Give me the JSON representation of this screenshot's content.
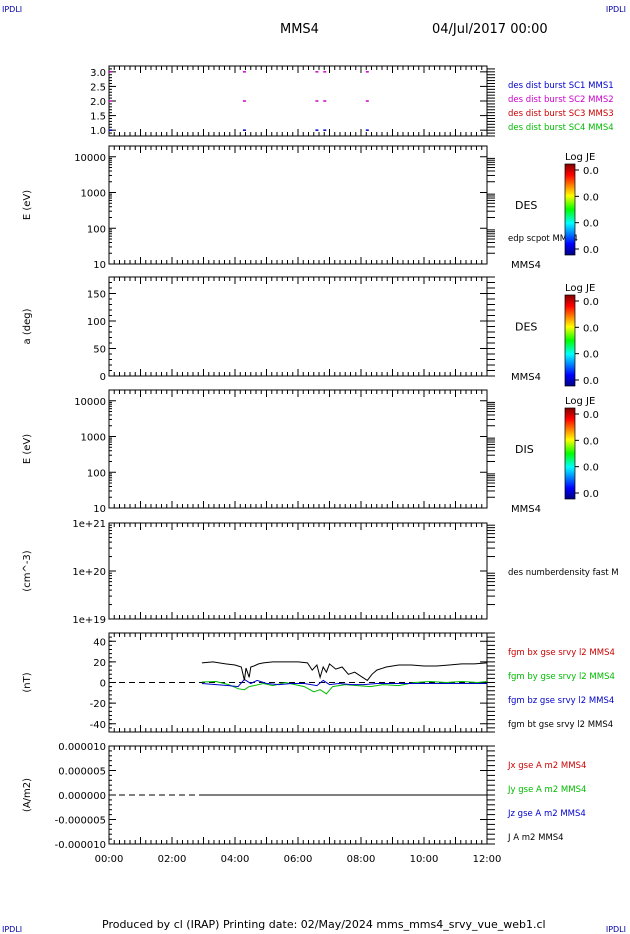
{
  "header": {
    "corner_left": "IPDLI",
    "corner_right": "IPDLI",
    "title": "MMS4",
    "date": "04/Jul/2017 00:00"
  },
  "footer": {
    "text": "Produced by cl (IRAP)   Printing date: 02/May/2024   mms_mms4_srvy_vue_web1.cl",
    "corner_left": "IPDLI",
    "corner_right": "IPDLI"
  },
  "time_axis": {
    "ticks": [
      "00:00",
      "02:00",
      "04:00",
      "06:00",
      "08:00",
      "10:00",
      "12:00"
    ],
    "range_hours": [
      0,
      12
    ]
  },
  "colors": {
    "mms1": "#0000cc",
    "mms2": "#cc00cc",
    "mms3": "#cc0000",
    "mms4": "#00bb00",
    "black": "#000000"
  },
  "chart_data": [
    {
      "type": "scatter",
      "panel": "burst",
      "ylabel": "",
      "ylim": [
        0.8,
        3.2
      ],
      "yticks": [
        "3.0",
        "2.5",
        "2.0",
        "1.5",
        "1.0"
      ],
      "ytick_values": [
        3.0,
        2.5,
        2.0,
        1.5,
        1.0
      ],
      "legend": [
        {
          "label": "des dist burst SC1 MMS1",
          "color": "#0000cc"
        },
        {
          "label": "des dist burst SC2 MMS2",
          "color": "#cc00cc"
        },
        {
          "label": "des dist burst SC3 MMS3",
          "color": "#cc0000"
        },
        {
          "label": "des dist burst SC4 MMS4",
          "color": "#00bb00"
        }
      ],
      "series": [
        {
          "level": 3.0,
          "color": "#cc00cc",
          "x": [
            0.05,
            4.3,
            6.6,
            6.85,
            8.2
          ]
        },
        {
          "level": 2.0,
          "color": "#cc00cc",
          "x": [
            0.05,
            4.3,
            6.6,
            6.85,
            8.2
          ]
        },
        {
          "level": 1.0,
          "color": "#0000cc",
          "x": [
            0.05,
            4.3,
            6.6,
            6.85,
            8.2
          ]
        }
      ]
    },
    {
      "type": "heatmap",
      "panel": "des-energy",
      "ylabel": "E (eV)",
      "yscale": "log",
      "ylim": [
        10,
        20000
      ],
      "yticks": [
        "10000",
        "1000",
        "100",
        "10"
      ],
      "ytick_values": [
        10000,
        1000,
        100,
        10
      ],
      "label": "DES",
      "sublabel": "edp scpot MMS4",
      "bottom_label": "MMS4",
      "colorbar": {
        "title": "Log JE",
        "ticks": [
          "0.0",
          "0.0",
          "0.0",
          "0.0"
        ]
      }
    },
    {
      "type": "heatmap",
      "panel": "des-pitch",
      "ylabel": "a (deg)",
      "ylim": [
        0,
        180
      ],
      "yticks": [
        "150",
        "100",
        "50",
        "0"
      ],
      "ytick_values": [
        150,
        100,
        50,
        0
      ],
      "label": "DES",
      "bottom_label": "MMS4",
      "colorbar": {
        "title": "Log JE",
        "ticks": [
          "0.0",
          "0.0",
          "0.0",
          "0.0"
        ]
      }
    },
    {
      "type": "heatmap",
      "panel": "dis-energy",
      "ylabel": "E (eV)",
      "yscale": "log",
      "ylim": [
        10,
        20000
      ],
      "yticks": [
        "10000",
        "1000",
        "100",
        "10"
      ],
      "ytick_values": [
        10000,
        1000,
        100,
        10
      ],
      "label": "DIS",
      "bottom_label": "MMS4",
      "colorbar": {
        "title": "Log JE",
        "ticks": [
          "0.0",
          "0.0",
          "0.0",
          "0.0"
        ]
      }
    },
    {
      "type": "line",
      "panel": "density",
      "ylabel": "(cm^-3)",
      "yscale": "log",
      "ylim": [
        1e+19,
        1e+21
      ],
      "yticks": [
        "1e+21",
        "1e+20",
        "1e+19"
      ],
      "ytick_values": [
        1e+21,
        1e+20,
        1e+19
      ],
      "legend": [
        {
          "label": "des numberdensity fast M",
          "color": "#000000"
        }
      ]
    },
    {
      "type": "line",
      "panel": "fgm",
      "ylabel": "(nT)",
      "ylim": [
        -48,
        48
      ],
      "yticks": [
        "40",
        "20",
        "0",
        "-20",
        "-40"
      ],
      "ytick_values": [
        40,
        20,
        0,
        -20,
        -40
      ],
      "legend": [
        {
          "label": "fgm bx gse srvy l2 MMS4",
          "color": "#cc0000"
        },
        {
          "label": "fgm by gse srvy l2 MMS4",
          "color": "#00bb00"
        },
        {
          "label": "fgm bz gse srvy l2 MMS4",
          "color": "#0000cc"
        },
        {
          "label": "fgm bt gse srvy l2 MMS4",
          "color": "#000000"
        }
      ],
      "series": [
        {
          "name": "fgm by gse srvy l2 MMS4",
          "color": "#00bb00",
          "x": [
            2.95,
            3.4,
            3.8,
            4.1,
            4.3,
            4.45,
            4.6,
            4.9,
            5.2,
            5.6,
            5.9,
            6.2,
            6.5,
            6.7,
            6.9,
            7.1,
            7.5,
            7.9,
            8.3,
            8.7,
            9.2,
            9.7,
            10.2,
            10.7,
            11.2,
            11.7,
            12.0
          ],
          "y": [
            0.5,
            1,
            -2,
            -6,
            -7,
            -4,
            -3,
            -1,
            -3,
            0,
            -2,
            -4,
            -9,
            -7,
            -11,
            -4,
            -2,
            -3,
            -4,
            -2,
            -3,
            0,
            1,
            0,
            1,
            0,
            1
          ]
        },
        {
          "name": "fgm bz gse srvy l2 MMS4",
          "color": "#0000cc",
          "x": [
            2.95,
            3.4,
            3.8,
            4.1,
            4.3,
            4.5,
            4.7,
            5.0,
            5.4,
            5.8,
            6.2,
            6.6,
            6.8,
            7.0,
            7.3,
            7.7,
            8.1,
            8.5,
            9.0,
            9.6,
            10.2,
            10.8,
            11.4,
            12.0
          ],
          "y": [
            -1,
            -2,
            -3,
            -4,
            3,
            -1,
            2,
            -1,
            -2,
            -1,
            -1,
            -3,
            2,
            -2,
            -1,
            -2,
            -2,
            -1,
            -1,
            -1,
            -1,
            -1,
            -1,
            -1
          ]
        },
        {
          "name": "fgm bt gse srvy l2 MMS4",
          "color": "#000000",
          "x": [
            2.95,
            3.3,
            3.7,
            4.0,
            4.2,
            4.3,
            4.35,
            4.45,
            4.5,
            4.6,
            4.75,
            4.9,
            5.2,
            5.6,
            6.0,
            6.3,
            6.45,
            6.6,
            6.7,
            6.8,
            6.9,
            7.0,
            7.2,
            7.4,
            7.6,
            7.8,
            8.0,
            8.2,
            8.35,
            8.5,
            8.8,
            9.2,
            9.6,
            10.0,
            10.4,
            10.8,
            11.2,
            11.6,
            12.0
          ],
          "y": [
            19,
            20,
            18,
            17,
            15,
            2,
            14,
            5,
            15,
            16,
            18,
            19,
            20,
            20,
            20,
            19,
            12,
            17,
            5,
            15,
            10,
            18,
            13,
            15,
            8,
            10,
            6,
            2,
            8,
            12,
            15,
            17,
            17,
            16,
            16,
            17,
            18,
            18,
            19
          ]
        }
      ]
    },
    {
      "type": "line",
      "panel": "current",
      "ylabel": "(A/m2)",
      "ylim": [
        -1e-05,
        1e-05
      ],
      "yticks": [
        "0.000010",
        "0.000005",
        "0.000000",
        "-0.000005",
        "-0.000010"
      ],
      "ytick_values": [
        1e-05,
        5e-06,
        0,
        -5e-06,
        -1e-05
      ],
      "legend": [
        {
          "label": "Jx gse A m2 MMS4",
          "color": "#cc0000"
        },
        {
          "label": "Jy gse A m2 MMS4",
          "color": "#00bb00"
        },
        {
          "label": "Jz gse A m2 MMS4",
          "color": "#0000cc"
        },
        {
          "label": "J A m2 MMS4",
          "color": "#000000"
        }
      ],
      "series": [
        {
          "name": "J A m2 MMS4",
          "color": "#000000",
          "x": [
            2.95,
            12.0
          ],
          "y": [
            0,
            0
          ]
        }
      ]
    }
  ]
}
